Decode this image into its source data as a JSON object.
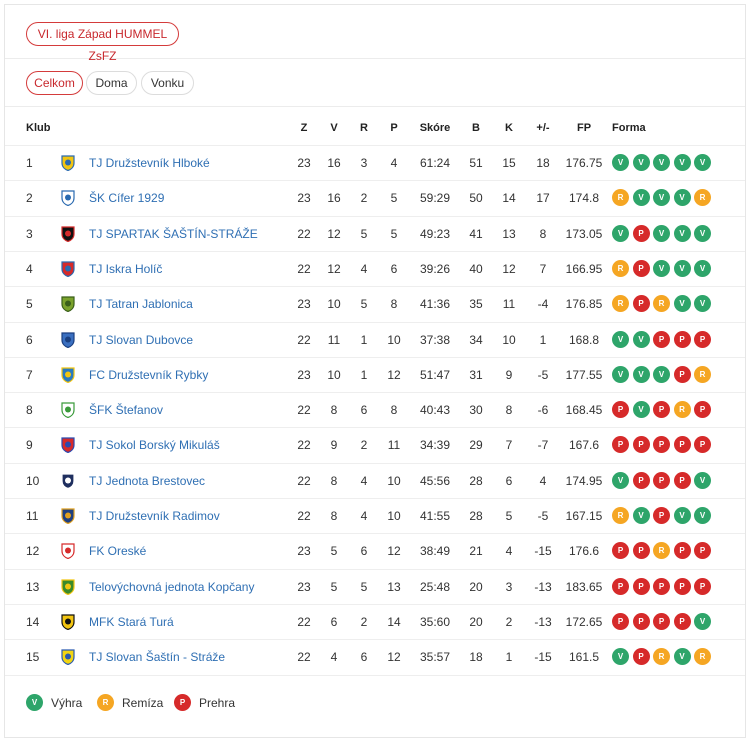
{
  "league": "VI. liga Západ HUMMEL ZsFZ",
  "tabs": [
    "Celkom",
    "Doma",
    "Vonku"
  ],
  "active_tab": "Celkom",
  "headers": {
    "klub": "Klub",
    "z": "Z",
    "v": "V",
    "r": "R",
    "p": "P",
    "skore": "Skóre",
    "b": "B",
    "k": "K",
    "pm": "+/-",
    "fp": "FP",
    "forma": "Forma"
  },
  "colors": {
    "win": "#2ea56a",
    "draw": "#f5a623",
    "loss": "#d62a2a",
    "link": "#2f6fb3",
    "accent": "#c8282d"
  },
  "rows": [
    {
      "rank": "1",
      "team": "TJ Družstevník Hlboké",
      "z": "23",
      "v": "16",
      "r": "3",
      "p": "4",
      "skore": "61:24",
      "b": "51",
      "k": "15",
      "pm": "18",
      "fp": "176.75",
      "form": [
        "V",
        "V",
        "V",
        "V",
        "V"
      ],
      "logo": "shield-yellow-icon"
    },
    {
      "rank": "2",
      "team": "ŠK Cífer 1929",
      "z": "23",
      "v": "16",
      "r": "2",
      "p": "5",
      "skore": "59:29",
      "b": "50",
      "k": "14",
      "pm": "17",
      "fp": "174.8",
      "form": [
        "R",
        "V",
        "V",
        "V",
        "R"
      ],
      "logo": "shield-blue-stripes-icon"
    },
    {
      "rank": "3",
      "team": "TJ SPARTAK ŠAŠTÍN-STRÁŽE",
      "z": "22",
      "v": "12",
      "r": "5",
      "p": "5",
      "skore": "49:23",
      "b": "41",
      "k": "13",
      "pm": "8",
      "fp": "173.05",
      "form": [
        "V",
        "P",
        "V",
        "V",
        "V"
      ],
      "logo": "shield-black-red-icon"
    },
    {
      "rank": "4",
      "team": "TJ Iskra Holíč",
      "z": "22",
      "v": "12",
      "r": "4",
      "p": "6",
      "skore": "39:26",
      "b": "40",
      "k": "12",
      "pm": "7",
      "fp": "166.95",
      "form": [
        "R",
        "P",
        "V",
        "V",
        "V"
      ],
      "logo": "shield-red-blue-icon"
    },
    {
      "rank": "5",
      "team": "TJ Tatran Jablonica",
      "z": "23",
      "v": "10",
      "r": "5",
      "p": "8",
      "skore": "41:36",
      "b": "35",
      "k": "11",
      "pm": "-4",
      "fp": "176.85",
      "form": [
        "R",
        "P",
        "R",
        "V",
        "V"
      ],
      "logo": "shield-green-icon"
    },
    {
      "rank": "6",
      "team": "TJ Slovan Dubovce",
      "z": "22",
      "v": "11",
      "r": "1",
      "p": "10",
      "skore": "37:38",
      "b": "34",
      "k": "10",
      "pm": "1",
      "fp": "168.8",
      "form": [
        "V",
        "V",
        "P",
        "P",
        "P"
      ],
      "logo": "shield-blue-icon"
    },
    {
      "rank": "7",
      "team": "FC Družstevník Rybky",
      "z": "23",
      "v": "10",
      "r": "1",
      "p": "12",
      "skore": "51:47",
      "b": "31",
      "k": "9",
      "pm": "-5",
      "fp": "177.55",
      "form": [
        "V",
        "V",
        "V",
        "P",
        "R"
      ],
      "logo": "round-blue-yellow-icon"
    },
    {
      "rank": "8",
      "team": "ŠFK Štefanov",
      "z": "22",
      "v": "8",
      "r": "6",
      "p": "8",
      "skore": "40:43",
      "b": "30",
      "k": "8",
      "pm": "-6",
      "fp": "168.45",
      "form": [
        "P",
        "V",
        "P",
        "R",
        "P"
      ],
      "logo": "shield-green-white-icon"
    },
    {
      "rank": "9",
      "team": "TJ Sokol Borský Mikuláš",
      "z": "22",
      "v": "9",
      "r": "2",
      "p": "11",
      "skore": "34:39",
      "b": "29",
      "k": "7",
      "pm": "-7",
      "fp": "167.6",
      "form": [
        "P",
        "P",
        "P",
        "P",
        "P"
      ],
      "logo": "flag-red-blue-icon"
    },
    {
      "rank": "10",
      "team": "TJ Jednota Brestovec",
      "z": "22",
      "v": "8",
      "r": "4",
      "p": "10",
      "skore": "45:56",
      "b": "28",
      "k": "6",
      "pm": "4",
      "fp": "174.95",
      "form": [
        "V",
        "P",
        "P",
        "P",
        "V"
      ],
      "logo": "shield-navy-icon"
    },
    {
      "rank": "11",
      "team": "TJ Družstevník Radimov",
      "z": "22",
      "v": "8",
      "r": "4",
      "p": "10",
      "skore": "41:55",
      "b": "28",
      "k": "5",
      "pm": "-5",
      "fp": "167.15",
      "form": [
        "R",
        "V",
        "P",
        "V",
        "V"
      ],
      "logo": "shield-dark-blue-icon"
    },
    {
      "rank": "12",
      "team": "FK Oreské",
      "z": "23",
      "v": "5",
      "r": "6",
      "p": "12",
      "skore": "38:49",
      "b": "21",
      "k": "4",
      "pm": "-15",
      "fp": "176.6",
      "form": [
        "P",
        "P",
        "R",
        "P",
        "P"
      ],
      "logo": "shield-white-red-icon"
    },
    {
      "rank": "13",
      "team": "Telovýchovná jednota Kopčany",
      "z": "23",
      "v": "5",
      "r": "5",
      "p": "13",
      "skore": "25:48",
      "b": "20",
      "k": "3",
      "pm": "-13",
      "fp": "183.65",
      "form": [
        "P",
        "P",
        "P",
        "P",
        "P"
      ],
      "logo": "shield-green-yellow-icon"
    },
    {
      "rank": "14",
      "team": "MFK Stará Turá",
      "z": "22",
      "v": "6",
      "r": "2",
      "p": "14",
      "skore": "35:60",
      "b": "20",
      "k": "2",
      "pm": "-13",
      "fp": "172.65",
      "form": [
        "P",
        "P",
        "P",
        "P",
        "V"
      ],
      "logo": "crest-black-yellow-icon"
    },
    {
      "rank": "15",
      "team": "TJ Slovan Šaštín - Stráže",
      "z": "22",
      "v": "4",
      "r": "6",
      "p": "12",
      "skore": "35:57",
      "b": "18",
      "k": "1",
      "pm": "-15",
      "fp": "161.5",
      "form": [
        "V",
        "P",
        "R",
        "V",
        "R"
      ],
      "logo": "shield-yellow-blue-icon"
    }
  ],
  "legend": [
    {
      "letter": "V",
      "label": "Výhra"
    },
    {
      "letter": "R",
      "label": "Remíza"
    },
    {
      "letter": "P",
      "label": "Prehra"
    }
  ]
}
